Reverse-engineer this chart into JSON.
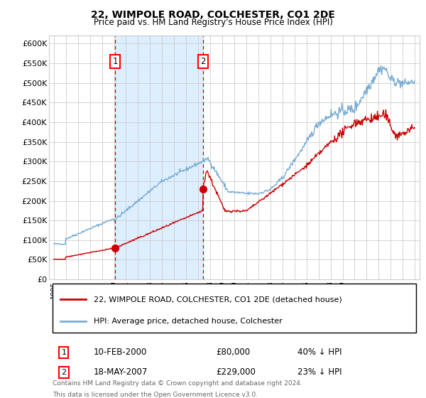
{
  "title": "22, WIMPOLE ROAD, COLCHESTER, CO1 2DE",
  "subtitle": "Price paid vs. HM Land Registry's House Price Index (HPI)",
  "legend_line1": "22, WIMPOLE ROAD, COLCHESTER, CO1 2DE (detached house)",
  "legend_line2": "HPI: Average price, detached house, Colchester",
  "annotation1_label": "1",
  "annotation1_date": "10-FEB-2000",
  "annotation1_price": "£80,000",
  "annotation1_hpi": "40% ↓ HPI",
  "annotation2_label": "2",
  "annotation2_date": "18-MAY-2007",
  "annotation2_price": "£229,000",
  "annotation2_hpi": "23% ↓ HPI",
  "footnote1": "Contains HM Land Registry data © Crown copyright and database right 2024.",
  "footnote2": "This data is licensed under the Open Government Licence v3.0.",
  "red_color": "#cc0000",
  "blue_color": "#7aadd4",
  "shade_color": "#ddeeff",
  "grid_color": "#cccccc",
  "background_color": "#ffffff",
  "ylim": [
    0,
    620000
  ],
  "yticks": [
    0,
    50000,
    100000,
    150000,
    200000,
    250000,
    300000,
    350000,
    400000,
    450000,
    500000,
    550000,
    600000
  ],
  "sale1_year": 2000.1,
  "sale1_value": 80000,
  "sale2_year": 2007.38,
  "sale2_value": 229000,
  "xlim_left": 1994.6,
  "xlim_right": 2025.4
}
